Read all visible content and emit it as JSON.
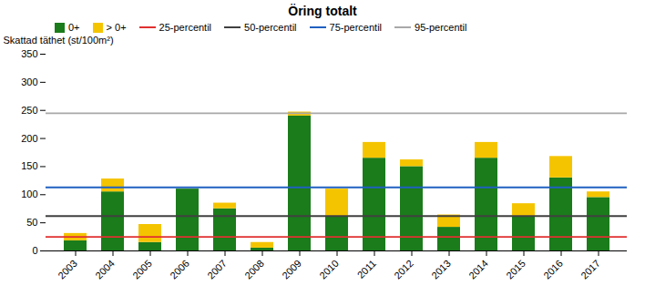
{
  "chart_data": {
    "type": "bar",
    "title": "Öring totalt",
    "ylabel": "Skattad täthet (st/100m²)",
    "categories": [
      "2003",
      "2004",
      "2005",
      "2006",
      "2007",
      "2008",
      "2009",
      "2010",
      "2011",
      "2012",
      "2013",
      "2014",
      "2015",
      "2016",
      "2017"
    ],
    "series": [
      {
        "name": "0+",
        "color": "#1a7c1a",
        "values": [
          18,
          105,
          15,
          110,
          75,
          5,
          240,
          60,
          165,
          150,
          42,
          165,
          60,
          130,
          95
        ]
      },
      {
        "name": "> 0+",
        "color": "#f5c400",
        "values": [
          13,
          23,
          32,
          0,
          10,
          10,
          7,
          50,
          28,
          12,
          22,
          28,
          24,
          38,
          10
        ]
      }
    ],
    "hlines": [
      {
        "name": "25-percentil",
        "value": 25,
        "color": "#e03030"
      },
      {
        "name": "50-percentil",
        "value": 62,
        "color": "#404040"
      },
      {
        "name": "75-percentil",
        "value": 113,
        "color": "#2060c0"
      },
      {
        "name": "95-percentil",
        "value": 245,
        "color": "#a8a8a8"
      }
    ],
    "stacked": true,
    "ylim": [
      0,
      350
    ],
    "yticks": [
      0,
      50,
      100,
      150,
      200,
      250,
      300,
      350
    ],
    "grid": false,
    "legend": "upper left"
  }
}
